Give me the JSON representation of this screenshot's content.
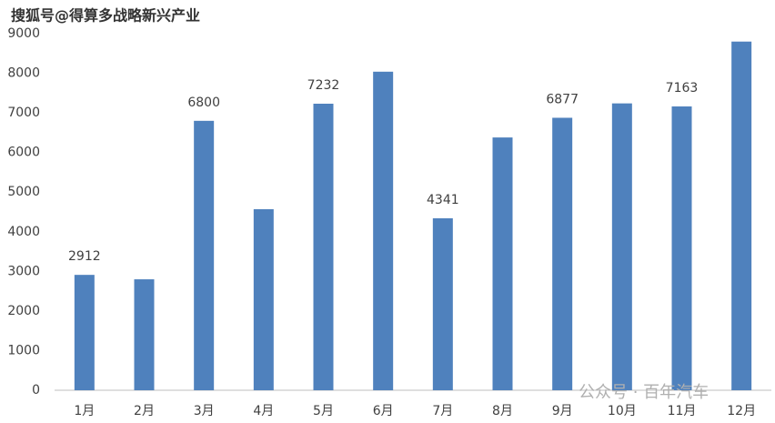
{
  "chart_data": {
    "type": "bar",
    "watermarks": [
      "搜狐号@得算多战略新兴产业",
      "公众号 · 百年汽车"
    ],
    "categories": [
      "1月",
      "2月",
      "3月",
      "4月",
      "5月",
      "6月",
      "7月",
      "8月",
      "9月",
      "10月",
      "11月",
      "12月"
    ],
    "values": [
      2912,
      2800,
      6800,
      4570,
      7232,
      8040,
      4341,
      6380,
      6877,
      7240,
      7163,
      8800
    ],
    "value_labels": [
      "2912",
      null,
      "6800",
      null,
      "7232",
      null,
      "4341",
      null,
      "6877",
      null,
      "7163",
      null
    ],
    "color": "#4f81bd",
    "ylim": [
      0,
      9000
    ],
    "yticks": [
      0,
      1000,
      2000,
      3000,
      4000,
      5000,
      6000,
      7000,
      8000,
      9000
    ],
    "grid": false
  }
}
